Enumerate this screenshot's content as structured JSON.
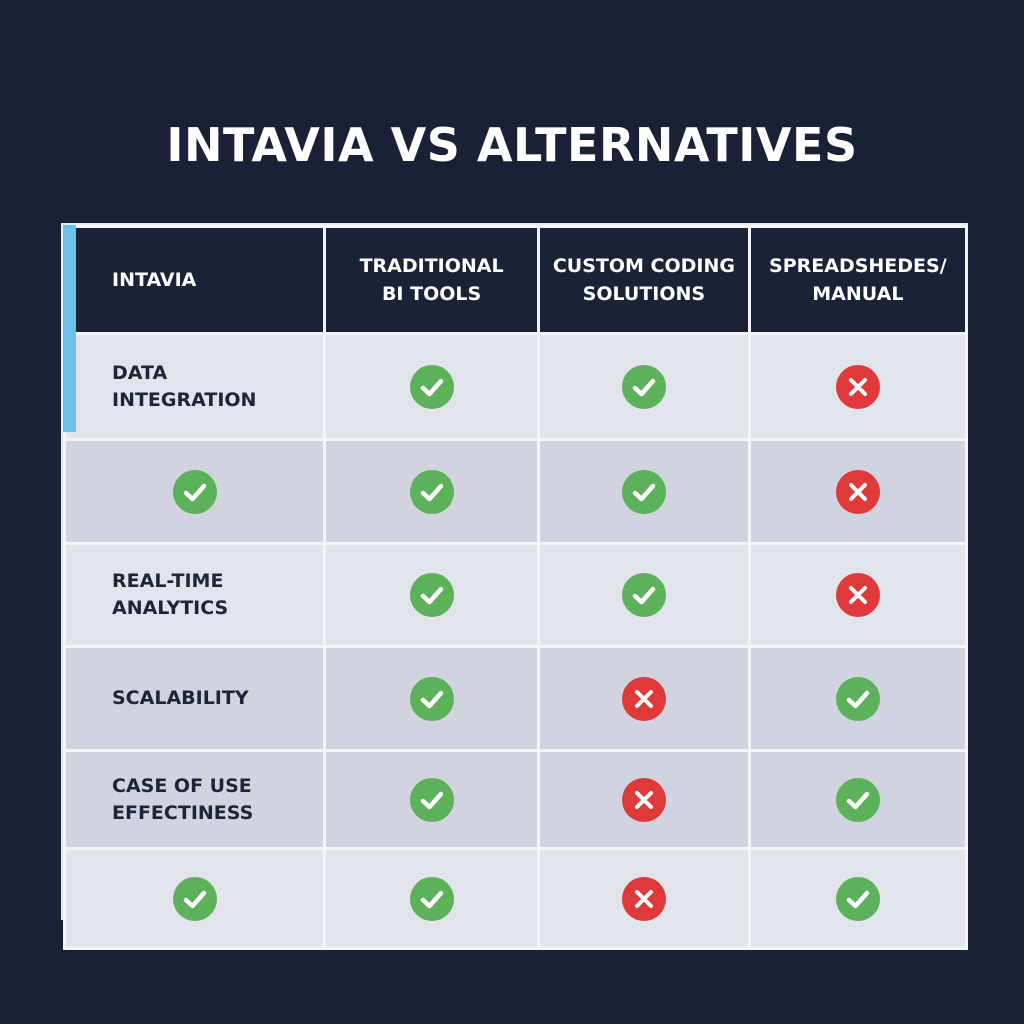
{
  "title": "INTAVIA VS ALTERNATIVES",
  "colors": {
    "background": "#1a2136",
    "header": "#1b2238",
    "accent_stripe": "#6cc0ea",
    "check": "#5cb15a",
    "cross": "#e0393a"
  },
  "columns": [
    "INTAVIA",
    "TRADITIONAL\nBI TOOLS",
    "CUSTOM CODING\nSOLUTIONS",
    "SPREADSHEDES/\nMANUAL"
  ],
  "rows": [
    {
      "shade": "light",
      "cells": [
        {
          "text": "DATA\nINTEGRATION"
        },
        {
          "icon": "check"
        },
        {
          "icon": "check"
        },
        {
          "icon": "cross"
        }
      ]
    },
    {
      "shade": "dark",
      "cells": [
        {
          "icon": "check"
        },
        {
          "icon": "check"
        },
        {
          "icon": "check"
        },
        {
          "icon": "cross"
        }
      ]
    },
    {
      "shade": "light",
      "cells": [
        {
          "text": "REAL-TIME\nANALYTICS"
        },
        {
          "icon": "check"
        },
        {
          "icon": "check"
        },
        {
          "icon": "cross"
        }
      ]
    },
    {
      "shade": "dark",
      "cells": [
        {
          "text": "SCALABILITY"
        },
        {
          "icon": "check"
        },
        {
          "icon": "cross"
        },
        {
          "icon": "check"
        }
      ]
    },
    {
      "shade": "dark",
      "cells": [
        {
          "text": "CASE OF USE\nEFFECTINESS"
        },
        {
          "icon": "check"
        },
        {
          "icon": "cross"
        },
        {
          "icon": "check"
        }
      ]
    },
    {
      "shade": "light",
      "cells": [
        {
          "icon": "check"
        },
        {
          "icon": "check"
        },
        {
          "icon": "cross"
        },
        {
          "icon": "check"
        }
      ]
    }
  ]
}
